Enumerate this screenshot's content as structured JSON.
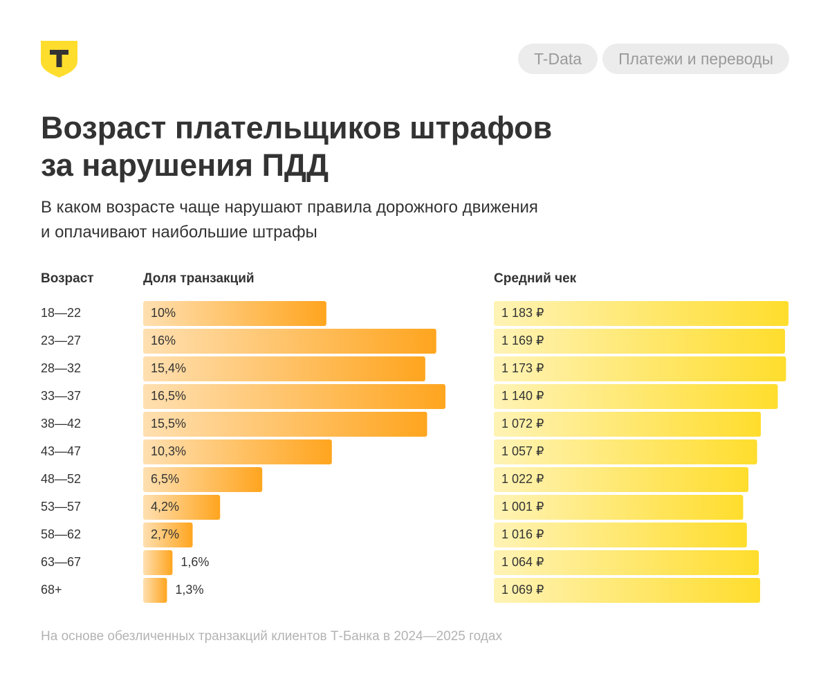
{
  "header": {
    "tags": [
      "T-Data",
      "Платежи и переводы"
    ],
    "title": "Возраст плательщиков штрафов\nза нарушения ПДД",
    "subtitle": "В каком возрасте чаще нарушают правила дорожного движения\nи оплачивают наибольшие штрафы"
  },
  "chart_data": {
    "type": "bar",
    "orientation": "horizontal",
    "category_title": "Возраст",
    "categories": [
      "18—22",
      "23—27",
      "28—32",
      "33—37",
      "38—42",
      "43—47",
      "48—52",
      "53—57",
      "58—62",
      "63—67",
      "68+"
    ],
    "series": [
      {
        "name": "Доля транзакций",
        "color": "#ffa51f",
        "values": [
          10,
          16,
          15.4,
          16.5,
          15.5,
          10.3,
          6.5,
          4.2,
          2.7,
          1.6,
          1.3
        ],
        "value_labels": [
          "10%",
          "16%",
          "15,4%",
          "16,5%",
          "15,5%",
          "10,3%",
          "6,5%",
          "4,2%",
          "2,7%",
          "1,6%",
          "1,3%"
        ]
      },
      {
        "name": "Средний чек",
        "color": "#ffdd2d",
        "values": [
          1183,
          1169,
          1173,
          1140,
          1072,
          1057,
          1022,
          1001,
          1016,
          1064,
          1069
        ],
        "value_labels": [
          "1 183 ₽",
          "1 169 ₽",
          "1 173 ₽",
          "1 140 ₽",
          "1 072 ₽",
          "1 057 ₽",
          "1 022 ₽",
          "1 001 ₽",
          "1 016 ₽",
          "1 064 ₽",
          "1 069 ₽"
        ]
      }
    ]
  },
  "footnote": "На основе обезличенных транзакций клиентов Т-Банка в 2024—2025 годах"
}
